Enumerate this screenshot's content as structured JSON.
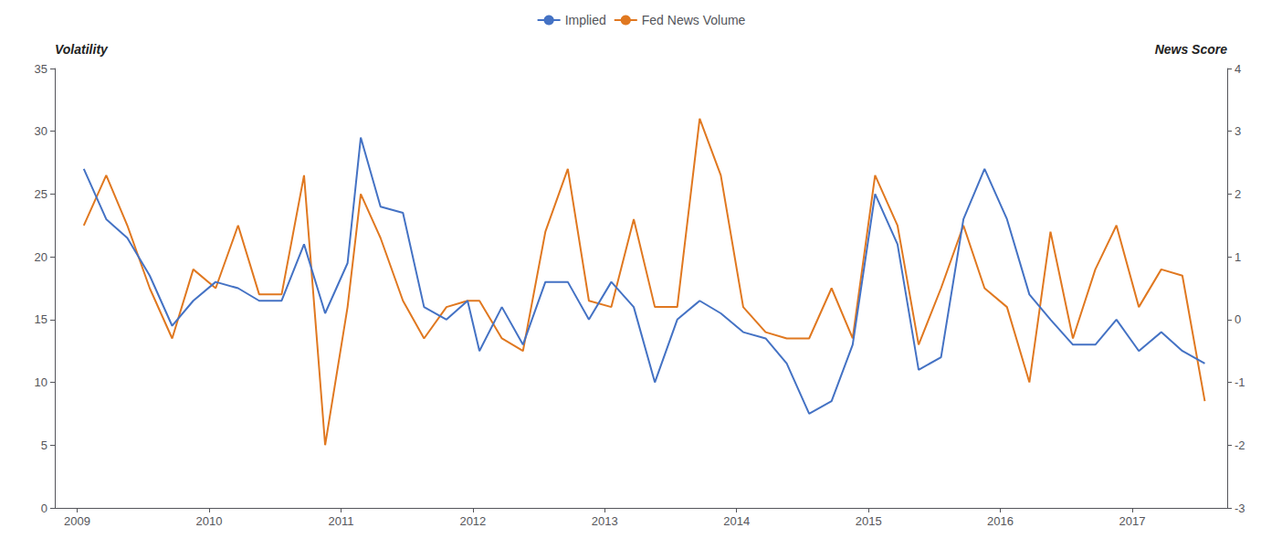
{
  "chart_data": {
    "type": "line",
    "ylabel": "Volatility",
    "y2label": "News Score",
    "x": [
      2009.05,
      2009.22,
      2009.38,
      2009.55,
      2009.72,
      2009.88,
      2010.05,
      2010.22,
      2010.38,
      2010.55,
      2010.72,
      2010.88,
      2011.05,
      2011.15,
      2011.3,
      2011.47,
      2011.63,
      2011.8,
      2011.96,
      2012.05,
      2012.22,
      2012.38,
      2012.55,
      2012.72,
      2012.88,
      2013.05,
      2013.22,
      2013.38,
      2013.55,
      2013.72,
      2013.88,
      2014.05,
      2014.22,
      2014.38,
      2014.55,
      2014.72,
      2014.88,
      2015.05,
      2015.22,
      2015.38,
      2015.55,
      2015.72,
      2015.88,
      2016.05,
      2016.22,
      2016.38,
      2016.55,
      2016.72,
      2016.88,
      2017.05,
      2017.22,
      2017.38,
      2017.55
    ],
    "series": [
      {
        "name": "Implied",
        "color": "#4472C4",
        "values": [
          27.0,
          23.0,
          21.5,
          18.5,
          14.5,
          16.5,
          18.0,
          17.5,
          16.5,
          16.5,
          21.0,
          15.5,
          19.5,
          29.5,
          24.0,
          23.5,
          16.0,
          15.0,
          16.5,
          12.5,
          16.0,
          13.0,
          18.0,
          18.0,
          15.0,
          18.0,
          16.0,
          10.0,
          15.0,
          16.5,
          15.5,
          14.0,
          13.5,
          11.5,
          7.5,
          8.5,
          13.0,
          25.0,
          21.0,
          11.0,
          12.0,
          23.0,
          27.0,
          23.0,
          17.0,
          15.0,
          13.0,
          13.0,
          15.0,
          12.5,
          14.0,
          12.5,
          11.5
        ]
      },
      {
        "name": "Fed News Volume",
        "color": "#E07820",
        "axis": "y2",
        "values": [
          1.5,
          2.3,
          1.5,
          0.5,
          -0.3,
          0.8,
          0.5,
          1.5,
          0.4,
          0.4,
          2.3,
          -2.0,
          0.2,
          2.0,
          1.3,
          0.3,
          -0.3,
          0.2,
          0.3,
          0.3,
          -0.3,
          -0.5,
          1.4,
          2.4,
          0.3,
          0.2,
          1.6,
          0.2,
          0.2,
          3.2,
          2.3,
          0.2,
          -0.2,
          -0.3,
          -0.3,
          0.5,
          -0.3,
          2.3,
          1.5,
          -0.4,
          0.5,
          1.5,
          0.5,
          0.2,
          -1.0,
          1.4,
          -0.3,
          0.8,
          1.5,
          0.2,
          0.8,
          0.7,
          -1.3
        ]
      }
    ],
    "xlim": [
      2008.83,
      2017.72
    ],
    "xticks": [
      2009,
      2010,
      2011,
      2012,
      2013,
      2014,
      2015,
      2016,
      2017
    ],
    "ylim": [
      0,
      35
    ],
    "yticks": [
      0,
      5,
      10,
      15,
      20,
      25,
      30,
      35
    ],
    "y2lim": [
      -3,
      4
    ],
    "y2ticks": [
      -3,
      -2,
      -1,
      0,
      1,
      2,
      3,
      4
    ],
    "legend": "top",
    "grid": false
  }
}
